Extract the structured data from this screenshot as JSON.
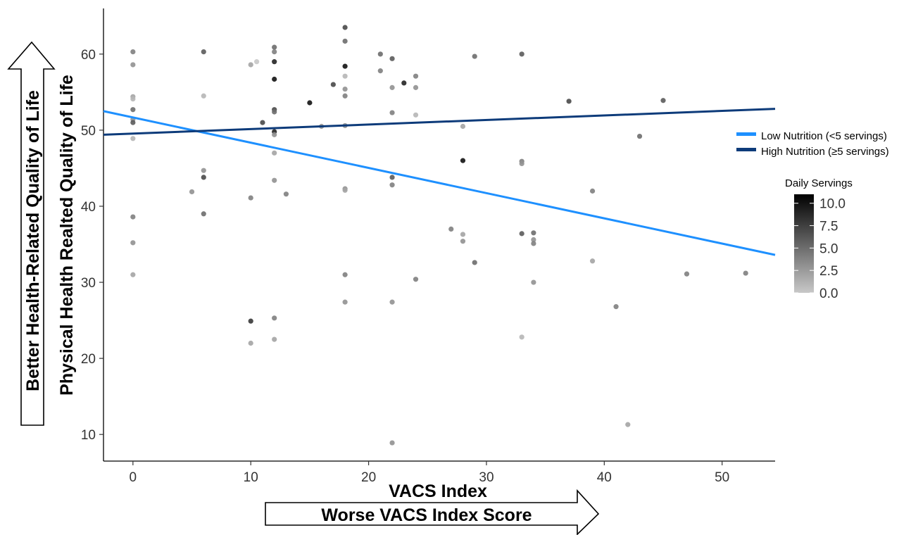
{
  "chart_data": {
    "type": "scatter",
    "xlabel": "VACS Index",
    "ylabel": "Physical Health Realted Quality of Life",
    "x_arrow_label": "Worse VACS Index Score",
    "y_arrow_label": "Better Health-Related Quality of Life",
    "xlim": [
      -2.5,
      54.5
    ],
    "ylim": [
      6.5,
      66
    ],
    "x_ticks": [
      0,
      10,
      20,
      30,
      40,
      50
    ],
    "y_ticks": [
      10,
      20,
      30,
      40,
      50,
      60
    ],
    "grid": false,
    "legend_position": "right",
    "lines": [
      {
        "name": "Low Nutrition (<5 servings)",
        "color": "#1e90ff",
        "x": [
          -2.5,
          54.5
        ],
        "y": [
          52.5,
          33.6
        ]
      },
      {
        "name": "High Nutrition (≥5 servings)",
        "color": "#0d3b7a",
        "x": [
          -2.5,
          54.5
        ],
        "y": [
          49.4,
          52.8
        ]
      }
    ],
    "colorbar": {
      "title": "Daily Servings",
      "ticks": [
        "10.0",
        "7.5",
        "5.0",
        "2.5",
        "0.0"
      ],
      "range": [
        0,
        11
      ],
      "low_color": "#c8c8c8",
      "high_color": "#000000"
    },
    "points": [
      {
        "x": 0,
        "y": 60.3,
        "s": 4
      },
      {
        "x": 0,
        "y": 58.6,
        "s": 3
      },
      {
        "x": 0,
        "y": 54.4,
        "s": 2
      },
      {
        "x": 0,
        "y": 54.1,
        "s": 1
      },
      {
        "x": 0,
        "y": 52.7,
        "s": 5
      },
      {
        "x": 0,
        "y": 51.4,
        "s": 3
      },
      {
        "x": 0,
        "y": 51.0,
        "s": 6
      },
      {
        "x": 0,
        "y": 48.9,
        "s": 1
      },
      {
        "x": 0,
        "y": 38.6,
        "s": 4
      },
      {
        "x": 0,
        "y": 35.2,
        "s": 3
      },
      {
        "x": 0,
        "y": 31.0,
        "s": 2
      },
      {
        "x": 5,
        "y": 41.9,
        "s": 3
      },
      {
        "x": 6,
        "y": 60.3,
        "s": 6
      },
      {
        "x": 6,
        "y": 54.5,
        "s": 1
      },
      {
        "x": 6,
        "y": 44.7,
        "s": 3
      },
      {
        "x": 6,
        "y": 43.8,
        "s": 7
      },
      {
        "x": 6,
        "y": 39.0,
        "s": 5
      },
      {
        "x": 10,
        "y": 58.6,
        "s": 2
      },
      {
        "x": 10,
        "y": 41.1,
        "s": 4
      },
      {
        "x": 10,
        "y": 24.9,
        "s": 8
      },
      {
        "x": 10,
        "y": 22.0,
        "s": 2
      },
      {
        "x": 10.5,
        "y": 59.0,
        "s": 0
      },
      {
        "x": 11,
        "y": 51.0,
        "s": 7
      },
      {
        "x": 12,
        "y": 60.9,
        "s": 5
      },
      {
        "x": 12,
        "y": 60.3,
        "s": 4
      },
      {
        "x": 12,
        "y": 59.0,
        "s": 9
      },
      {
        "x": 12,
        "y": 56.7,
        "s": 10
      },
      {
        "x": 12,
        "y": 52.7,
        "s": 7
      },
      {
        "x": 12,
        "y": 52.4,
        "s": 5
      },
      {
        "x": 12,
        "y": 49.8,
        "s": 9
      },
      {
        "x": 12,
        "y": 49.4,
        "s": 3
      },
      {
        "x": 12,
        "y": 47.0,
        "s": 2
      },
      {
        "x": 12,
        "y": 43.4,
        "s": 3
      },
      {
        "x": 12,
        "y": 25.3,
        "s": 4
      },
      {
        "x": 12,
        "y": 22.5,
        "s": 2
      },
      {
        "x": 13,
        "y": 41.6,
        "s": 4
      },
      {
        "x": 15,
        "y": 53.6,
        "s": 10
      },
      {
        "x": 16,
        "y": 50.5,
        "s": 3
      },
      {
        "x": 17,
        "y": 56.0,
        "s": 7
      },
      {
        "x": 18,
        "y": 63.5,
        "s": 7
      },
      {
        "x": 18,
        "y": 61.7,
        "s": 5
      },
      {
        "x": 18,
        "y": 58.4,
        "s": 10
      },
      {
        "x": 18,
        "y": 57.1,
        "s": 1
      },
      {
        "x": 18,
        "y": 55.4,
        "s": 3
      },
      {
        "x": 18,
        "y": 54.5,
        "s": 4
      },
      {
        "x": 18,
        "y": 50.6,
        "s": 3
      },
      {
        "x": 18,
        "y": 42.3,
        "s": 3
      },
      {
        "x": 18,
        "y": 42.1,
        "s": 2
      },
      {
        "x": 18,
        "y": 31.0,
        "s": 4
      },
      {
        "x": 18,
        "y": 27.4,
        "s": 3
      },
      {
        "x": 21,
        "y": 60.0,
        "s": 5
      },
      {
        "x": 21,
        "y": 57.8,
        "s": 4
      },
      {
        "x": 22,
        "y": 59.4,
        "s": 6
      },
      {
        "x": 22,
        "y": 55.6,
        "s": 3
      },
      {
        "x": 22,
        "y": 52.3,
        "s": 4
      },
      {
        "x": 22,
        "y": 43.8,
        "s": 6
      },
      {
        "x": 22,
        "y": 42.8,
        "s": 4
      },
      {
        "x": 22,
        "y": 27.4,
        "s": 3
      },
      {
        "x": 22,
        "y": 8.9,
        "s": 3
      },
      {
        "x": 23,
        "y": 56.2,
        "s": 9
      },
      {
        "x": 24,
        "y": 57.1,
        "s": 4
      },
      {
        "x": 24,
        "y": 55.6,
        "s": 3
      },
      {
        "x": 24,
        "y": 52.0,
        "s": 1
      },
      {
        "x": 24,
        "y": 30.4,
        "s": 4
      },
      {
        "x": 27,
        "y": 37.0,
        "s": 4
      },
      {
        "x": 28,
        "y": 50.5,
        "s": 2
      },
      {
        "x": 28,
        "y": 46.0,
        "s": 10
      },
      {
        "x": 28,
        "y": 36.3,
        "s": 2
      },
      {
        "x": 28,
        "y": 35.4,
        "s": 3
      },
      {
        "x": 29,
        "y": 59.7,
        "s": 5
      },
      {
        "x": 29,
        "y": 32.6,
        "s": 5
      },
      {
        "x": 33,
        "y": 60.0,
        "s": 6
      },
      {
        "x": 33,
        "y": 45.9,
        "s": 4
      },
      {
        "x": 33,
        "y": 45.6,
        "s": 3
      },
      {
        "x": 33,
        "y": 36.4,
        "s": 6
      },
      {
        "x": 33,
        "y": 22.8,
        "s": 1
      },
      {
        "x": 34,
        "y": 36.5,
        "s": 5
      },
      {
        "x": 34,
        "y": 35.6,
        "s": 3
      },
      {
        "x": 34,
        "y": 35.1,
        "s": 4
      },
      {
        "x": 34,
        "y": 30.0,
        "s": 3
      },
      {
        "x": 37,
        "y": 53.8,
        "s": 7
      },
      {
        "x": 39,
        "y": 42.0,
        "s": 4
      },
      {
        "x": 39,
        "y": 32.8,
        "s": 2
      },
      {
        "x": 41,
        "y": 26.8,
        "s": 4
      },
      {
        "x": 42,
        "y": 11.3,
        "s": 2
      },
      {
        "x": 43,
        "y": 49.2,
        "s": 5
      },
      {
        "x": 45,
        "y": 53.9,
        "s": 6
      },
      {
        "x": 47,
        "y": 31.1,
        "s": 4
      },
      {
        "x": 52,
        "y": 31.2,
        "s": 4
      }
    ]
  }
}
